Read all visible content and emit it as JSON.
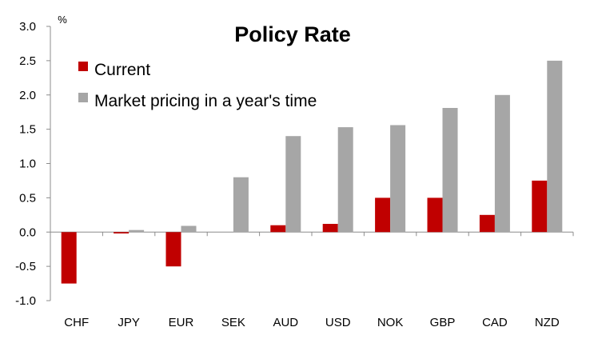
{
  "chart_data": {
    "type": "bar",
    "title": "Policy Rate",
    "ylabel": "%",
    "xlabel": "",
    "ylim": [
      -1.0,
      3.0
    ],
    "yticks": [
      "3.0",
      "2.5",
      "2.0",
      "1.5",
      "1.0",
      "0.5",
      "0.0",
      "-0.5",
      "-1.0"
    ],
    "ytick_values": [
      3.0,
      2.5,
      2.0,
      1.5,
      1.0,
      0.5,
      0.0,
      -0.5,
      -1.0
    ],
    "grid": false,
    "legend_position": "top-left",
    "categories": [
      "CHF",
      "JPY",
      "EUR",
      "SEK",
      "AUD",
      "USD",
      "NOK",
      "GBP",
      "CAD",
      "NZD"
    ],
    "series": [
      {
        "name": "Current",
        "color": "#c00000",
        "values": [
          -0.75,
          -0.02,
          -0.5,
          0.0,
          0.1,
          0.12,
          0.5,
          0.5,
          0.25,
          0.75
        ]
      },
      {
        "name": "Market pricing in a year's time",
        "color": "#a6a6a6",
        "values": [
          0.0,
          0.03,
          0.09,
          0.8,
          1.4,
          1.53,
          1.56,
          1.81,
          2.0,
          2.5
        ]
      }
    ]
  }
}
